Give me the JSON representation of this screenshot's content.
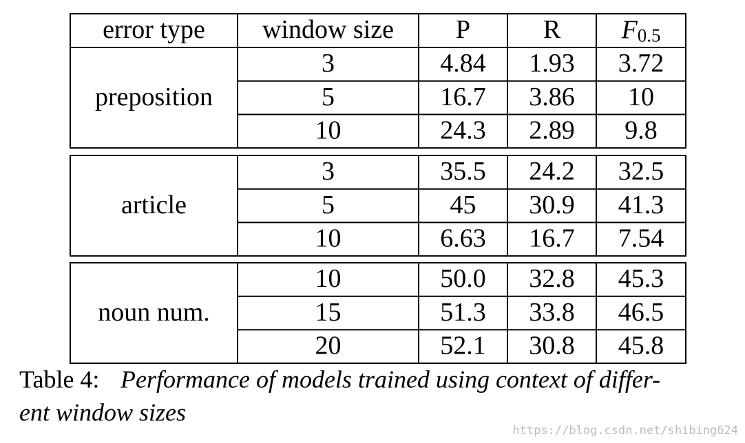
{
  "table": {
    "header": [
      "error type",
      "window size",
      "P",
      "R",
      {
        "main": "F",
        "sub": "0.5"
      }
    ],
    "groups": [
      {
        "label": "preposition",
        "rows": [
          [
            "3",
            "4.84",
            "1.93",
            "3.72"
          ],
          [
            "5",
            "16.7",
            "3.86",
            "10"
          ],
          [
            "10",
            "24.3",
            "2.89",
            "9.8"
          ]
        ]
      },
      {
        "label": "article",
        "rows": [
          [
            "3",
            "35.5",
            "24.2",
            "32.5"
          ],
          [
            "5",
            "45",
            "30.9",
            "41.3"
          ],
          [
            "10",
            "6.63",
            "16.7",
            "7.54"
          ]
        ]
      },
      {
        "label": "noun num.",
        "rows": [
          [
            "10",
            "50.0",
            "32.8",
            "45.3"
          ],
          [
            "15",
            "51.3",
            "33.8",
            "46.5"
          ],
          [
            "20",
            "52.1",
            "30.8",
            "45.8"
          ]
        ]
      }
    ]
  },
  "caption": {
    "label": "Table 4:",
    "lines": [
      "Performance of models trained using context of differ-",
      "ent window sizes"
    ]
  },
  "watermark": "https://blog.csdn.net/shibing624"
}
